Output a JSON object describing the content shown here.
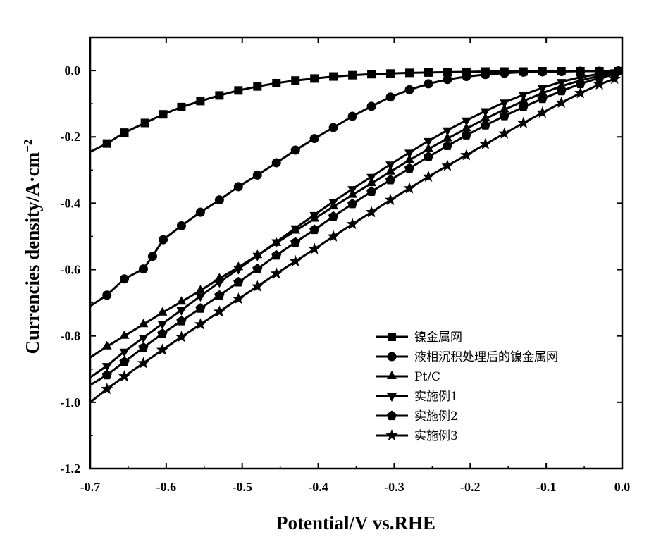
{
  "chart_data": {
    "type": "line",
    "title": "",
    "xlabel": "Potential/V vs.RHE",
    "ylabel_main": "Currencies density/A·cm",
    "ylabel_sup": "−2",
    "xlim": [
      -0.7,
      0.0
    ],
    "ylim": [
      -1.2,
      0.1
    ],
    "xticks": [
      -0.7,
      -0.6,
      -0.5,
      -0.4,
      -0.3,
      -0.2,
      -0.1,
      0.0
    ],
    "xtick_labels": [
      "-0.7",
      "-0.6",
      "-0.5",
      "-0.4",
      "-0.3",
      "-0.2",
      "-0.1",
      "0.0"
    ],
    "yticks": [
      0.0,
      -0.2,
      -0.4,
      -0.6,
      -0.8,
      -1.0,
      -1.2
    ],
    "ytick_labels": [
      "0.0",
      "-0.2",
      "-0.4",
      "-0.6",
      "-0.8",
      "-1.0",
      "-1.2"
    ],
    "grid": false,
    "legend_position": "bottom-right",
    "series": [
      {
        "name": "镍金属网",
        "marker": "square",
        "points": [
          [
            -0.7,
            -0.245
          ],
          [
            -0.678,
            -0.22
          ],
          [
            -0.655,
            -0.187
          ],
          [
            -0.628,
            -0.158
          ],
          [
            -0.604,
            -0.132
          ],
          [
            -0.58,
            -0.11
          ],
          [
            -0.555,
            -0.092
          ],
          [
            -0.53,
            -0.075
          ],
          [
            -0.505,
            -0.06
          ],
          [
            -0.48,
            -0.048
          ],
          [
            -0.455,
            -0.038
          ],
          [
            -0.43,
            -0.03
          ],
          [
            -0.405,
            -0.024
          ],
          [
            -0.38,
            -0.018
          ],
          [
            -0.355,
            -0.014
          ],
          [
            -0.33,
            -0.011
          ],
          [
            -0.305,
            -0.009
          ],
          [
            -0.28,
            -0.007
          ],
          [
            -0.255,
            -0.006
          ],
          [
            -0.23,
            -0.005
          ],
          [
            -0.205,
            -0.004
          ],
          [
            -0.18,
            -0.003
          ],
          [
            -0.155,
            -0.003
          ],
          [
            -0.13,
            -0.003
          ],
          [
            -0.105,
            -0.002
          ],
          [
            -0.08,
            -0.002
          ],
          [
            -0.055,
            -0.002
          ],
          [
            -0.03,
            -0.002
          ],
          [
            -0.005,
            -0.002
          ]
        ]
      },
      {
        "name": "液相沉积处理后的镍金属网",
        "marker": "circle",
        "points": [
          [
            -0.7,
            -0.71
          ],
          [
            -0.678,
            -0.677
          ],
          [
            -0.655,
            -0.628
          ],
          [
            -0.63,
            -0.598
          ],
          [
            -0.618,
            -0.56
          ],
          [
            -0.604,
            -0.51
          ],
          [
            -0.58,
            -0.468
          ],
          [
            -0.555,
            -0.427
          ],
          [
            -0.53,
            -0.39
          ],
          [
            -0.505,
            -0.35
          ],
          [
            -0.48,
            -0.315
          ],
          [
            -0.455,
            -0.278
          ],
          [
            -0.43,
            -0.24
          ],
          [
            -0.405,
            -0.205
          ],
          [
            -0.38,
            -0.172
          ],
          [
            -0.355,
            -0.138
          ],
          [
            -0.33,
            -0.108
          ],
          [
            -0.305,
            -0.08
          ],
          [
            -0.28,
            -0.058
          ],
          [
            -0.255,
            -0.04
          ],
          [
            -0.23,
            -0.027
          ],
          [
            -0.205,
            -0.018
          ],
          [
            -0.18,
            -0.012
          ],
          [
            -0.155,
            -0.008
          ],
          [
            -0.13,
            -0.005
          ],
          [
            -0.105,
            -0.004
          ],
          [
            -0.08,
            -0.003
          ],
          [
            -0.055,
            -0.002
          ],
          [
            -0.03,
            -0.002
          ],
          [
            -0.005,
            -0.001
          ]
        ]
      },
      {
        "name": "Pt/C",
        "marker": "triangle-up",
        "points": [
          [
            -0.7,
            -0.865
          ],
          [
            -0.678,
            -0.832
          ],
          [
            -0.655,
            -0.8
          ],
          [
            -0.63,
            -0.765
          ],
          [
            -0.605,
            -0.73
          ],
          [
            -0.58,
            -0.697
          ],
          [
            -0.555,
            -0.663
          ],
          [
            -0.53,
            -0.627
          ],
          [
            -0.505,
            -0.593
          ],
          [
            -0.48,
            -0.557
          ],
          [
            -0.455,
            -0.52
          ],
          [
            -0.43,
            -0.483
          ],
          [
            -0.405,
            -0.447
          ],
          [
            -0.38,
            -0.41
          ],
          [
            -0.355,
            -0.375
          ],
          [
            -0.33,
            -0.34
          ],
          [
            -0.305,
            -0.305
          ],
          [
            -0.28,
            -0.27
          ],
          [
            -0.255,
            -0.237
          ],
          [
            -0.23,
            -0.205
          ],
          [
            -0.205,
            -0.175
          ],
          [
            -0.18,
            -0.145
          ],
          [
            -0.155,
            -0.118
          ],
          [
            -0.13,
            -0.092
          ],
          [
            -0.105,
            -0.068
          ],
          [
            -0.08,
            -0.047
          ],
          [
            -0.055,
            -0.03
          ],
          [
            -0.03,
            -0.016
          ],
          [
            -0.01,
            -0.008
          ]
        ]
      },
      {
        "name": "实施例1",
        "marker": "triangle-down",
        "points": [
          [
            -0.7,
            -0.925
          ],
          [
            -0.678,
            -0.89
          ],
          [
            -0.655,
            -0.847
          ],
          [
            -0.63,
            -0.805
          ],
          [
            -0.605,
            -0.763
          ],
          [
            -0.58,
            -0.722
          ],
          [
            -0.555,
            -0.68
          ],
          [
            -0.53,
            -0.638
          ],
          [
            -0.505,
            -0.598
          ],
          [
            -0.48,
            -0.558
          ],
          [
            -0.455,
            -0.517
          ],
          [
            -0.43,
            -0.475
          ],
          [
            -0.405,
            -0.435
          ],
          [
            -0.38,
            -0.395
          ],
          [
            -0.355,
            -0.357
          ],
          [
            -0.33,
            -0.32
          ],
          [
            -0.305,
            -0.283
          ],
          [
            -0.28,
            -0.247
          ],
          [
            -0.255,
            -0.212
          ],
          [
            -0.23,
            -0.18
          ],
          [
            -0.205,
            -0.15
          ],
          [
            -0.18,
            -0.122
          ],
          [
            -0.155,
            -0.096
          ],
          [
            -0.13,
            -0.073
          ],
          [
            -0.105,
            -0.052
          ],
          [
            -0.08,
            -0.034
          ],
          [
            -0.055,
            -0.02
          ],
          [
            -0.03,
            -0.01
          ],
          [
            -0.01,
            -0.005
          ]
        ]
      },
      {
        "name": "实施例2",
        "marker": "pentagon",
        "points": [
          [
            -0.7,
            -0.948
          ],
          [
            -0.678,
            -0.918
          ],
          [
            -0.655,
            -0.878
          ],
          [
            -0.63,
            -0.835
          ],
          [
            -0.605,
            -0.793
          ],
          [
            -0.58,
            -0.755
          ],
          [
            -0.555,
            -0.717
          ],
          [
            -0.53,
            -0.678
          ],
          [
            -0.505,
            -0.638
          ],
          [
            -0.48,
            -0.598
          ],
          [
            -0.455,
            -0.557
          ],
          [
            -0.43,
            -0.518
          ],
          [
            -0.405,
            -0.48
          ],
          [
            -0.38,
            -0.44
          ],
          [
            -0.355,
            -0.402
          ],
          [
            -0.33,
            -0.365
          ],
          [
            -0.305,
            -0.33
          ],
          [
            -0.28,
            -0.295
          ],
          [
            -0.255,
            -0.26
          ],
          [
            -0.23,
            -0.227
          ],
          [
            -0.205,
            -0.195
          ],
          [
            -0.18,
            -0.165
          ],
          [
            -0.155,
            -0.137
          ],
          [
            -0.13,
            -0.11
          ],
          [
            -0.105,
            -0.085
          ],
          [
            -0.08,
            -0.062
          ],
          [
            -0.055,
            -0.04
          ],
          [
            -0.03,
            -0.022
          ],
          [
            -0.01,
            -0.012
          ]
        ]
      },
      {
        "name": "实施例3",
        "marker": "star",
        "points": [
          [
            -0.7,
            -1.0
          ],
          [
            -0.678,
            -0.96
          ],
          [
            -0.655,
            -0.922
          ],
          [
            -0.63,
            -0.882
          ],
          [
            -0.605,
            -0.842
          ],
          [
            -0.58,
            -0.803
          ],
          [
            -0.555,
            -0.765
          ],
          [
            -0.53,
            -0.727
          ],
          [
            -0.505,
            -0.688
          ],
          [
            -0.48,
            -0.651
          ],
          [
            -0.455,
            -0.612
          ],
          [
            -0.43,
            -0.575
          ],
          [
            -0.405,
            -0.538
          ],
          [
            -0.38,
            -0.5
          ],
          [
            -0.355,
            -0.463
          ],
          [
            -0.33,
            -0.427
          ],
          [
            -0.305,
            -0.39
          ],
          [
            -0.28,
            -0.355
          ],
          [
            -0.255,
            -0.32
          ],
          [
            -0.23,
            -0.287
          ],
          [
            -0.205,
            -0.255
          ],
          [
            -0.18,
            -0.222
          ],
          [
            -0.155,
            -0.19
          ],
          [
            -0.13,
            -0.158
          ],
          [
            -0.105,
            -0.127
          ],
          [
            -0.08,
            -0.097
          ],
          [
            -0.055,
            -0.068
          ],
          [
            -0.03,
            -0.042
          ],
          [
            -0.01,
            -0.025
          ]
        ]
      }
    ]
  }
}
